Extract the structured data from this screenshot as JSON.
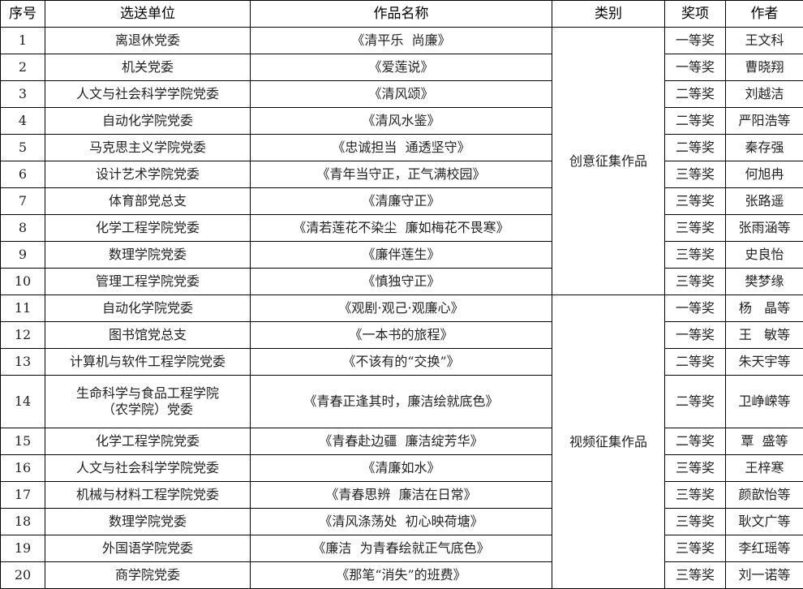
{
  "headers": [
    "序号",
    "选送单位",
    "作品名称",
    "类别",
    "奖项",
    "作者"
  ],
  "categories": [
    "创意征集作品",
    "视频征集作品"
  ],
  "rows": [
    {
      "no": "1",
      "unit": "离退休党委",
      "work": "《清平乐  尚廉》",
      "award": "一等奖",
      "author": "王文科"
    },
    {
      "no": "2",
      "unit": "机关党委",
      "work": "《爱莲说》",
      "award": "一等奖",
      "author": "曹晓翔"
    },
    {
      "no": "3",
      "unit": "人文与社会科学学院党委",
      "work": "《清风颂》",
      "award": "二等奖",
      "author": "刘越洁"
    },
    {
      "no": "4",
      "unit": "自动化学院党委",
      "work": "《清风水鉴》",
      "award": "二等奖",
      "author": "严阳浩等"
    },
    {
      "no": "5",
      "unit": "马克思主义学院党委",
      "work": "《忠诚担当  通透坚守》",
      "award": "二等奖",
      "author": "秦存强"
    },
    {
      "no": "6",
      "unit": "设计艺术学院党委",
      "work": "《青年当守正，正气满校园》",
      "award": "三等奖",
      "author": "何旭冉"
    },
    {
      "no": "7",
      "unit": "体育部党总支",
      "work": "《清廉守正》",
      "award": "三等奖",
      "author": "张路遥"
    },
    {
      "no": "8",
      "unit": "化学工程学院党委",
      "work": "《清若莲花不染尘  廉如梅花不畏寒》",
      "award": "三等奖",
      "author": "张雨涵等"
    },
    {
      "no": "9",
      "unit": "数理学院党委",
      "work": "《廉伴莲生》",
      "award": "三等奖",
      "author": "史良怡"
    },
    {
      "no": "10",
      "unit": "管理工程学院党委",
      "work": "《慎独守正》",
      "award": "三等奖",
      "author": "樊梦缘"
    },
    {
      "no": "11",
      "unit": "自动化学院党委",
      "work": "《观剧·观己·观廉心》",
      "award": "一等奖",
      "author": "杨   晶等"
    },
    {
      "no": "12",
      "unit": "图书馆党总支",
      "work": "《一本书的旅程》",
      "award": "一等奖",
      "author": "王   敏等"
    },
    {
      "no": "13",
      "unit": "计算机与软件工程学院党委",
      "work": "《不该有的“交换”》",
      "award": "二等奖",
      "author": "朱天宇等"
    },
    {
      "no": "14",
      "unit": "生命科学与食品工程学院\n（农学院）党委",
      "work": "《青春正逢其时，廉洁绘就底色》",
      "award": "二等奖",
      "author": "卫峥嵘等"
    },
    {
      "no": "15",
      "unit": "化学工程学院党委",
      "work": "《青春赴边疆  廉洁绽芳华》",
      "award": "二等奖",
      "author": "覃  盛等"
    },
    {
      "no": "16",
      "unit": "人文与社会科学学院党委",
      "work": "《清廉如水》",
      "award": "三等奖",
      "author": "王梓寒"
    },
    {
      "no": "17",
      "unit": "机械与材料工程学院党委",
      "work": "《青春思辨  廉洁在日常》",
      "award": "三等奖",
      "author": "颜歆怡等"
    },
    {
      "no": "18",
      "unit": "数理学院党委",
      "work": "《清风涤荡处  初心映荷塘》",
      "award": "三等奖",
      "author": "耿文广等"
    },
    {
      "no": "19",
      "unit": "外国语学院党委",
      "work": "《廉洁  为青春绘就正气底色》",
      "award": "三等奖",
      "author": "李红瑶等"
    },
    {
      "no": "20",
      "unit": "商学院党委",
      "work": "《那笔“消失”的班费》",
      "award": "三等奖",
      "author": "刘一诺等"
    }
  ]
}
